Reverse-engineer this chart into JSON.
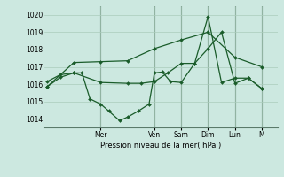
{
  "background_color": "#cce8e0",
  "grid_color": "#aaccbb",
  "line_color": "#1a5c2a",
  "marker_color": "#1a5c2a",
  "xlabel": "Pression niveau de la mer( hPa )",
  "ylim": [
    1013.5,
    1020.5
  ],
  "yticks": [
    1014,
    1015,
    1016,
    1017,
    1018,
    1019,
    1020
  ],
  "day_labels": [
    "Mer",
    "Ven",
    "Sam",
    "Dim",
    "Lun",
    "M"
  ],
  "day_positions": [
    2,
    4,
    5,
    6,
    7,
    8
  ],
  "xlim": [
    -0.1,
    8.6
  ],
  "series": {
    "line1_smooth": {
      "x": [
        0,
        1.0,
        2.0,
        3.0,
        4.0,
        5.0,
        6.0,
        7.0,
        8.0
      ],
      "y": [
        1015.85,
        1017.25,
        1017.3,
        1017.35,
        1018.05,
        1018.55,
        1019.0,
        1017.55,
        1017.0
      ]
    },
    "line2_jagged": {
      "x": [
        0,
        0.5,
        1.0,
        1.3,
        1.6,
        2.0,
        2.3,
        2.7,
        3.0,
        3.4,
        3.8,
        4.0,
        4.3,
        4.6,
        5.0,
        5.5,
        6.0,
        6.5,
        7.0,
        7.5,
        8.0
      ],
      "y": [
        1015.85,
        1016.4,
        1016.65,
        1016.65,
        1015.15,
        1014.85,
        1014.45,
        1013.9,
        1014.1,
        1014.45,
        1014.85,
        1016.65,
        1016.7,
        1016.15,
        1016.1,
        1017.2,
        1019.9,
        1016.1,
        1016.35,
        1016.35,
        1015.75
      ]
    },
    "line3_mid": {
      "x": [
        0,
        0.5,
        1.0,
        2.0,
        3.0,
        3.5,
        4.0,
        4.5,
        5.0,
        5.5,
        6.0,
        6.5,
        7.0,
        7.5,
        8.0
      ],
      "y": [
        1016.15,
        1016.55,
        1016.65,
        1016.1,
        1016.05,
        1016.05,
        1016.15,
        1016.65,
        1017.2,
        1017.2,
        1018.05,
        1019.0,
        1016.05,
        1016.35,
        1015.75
      ]
    }
  }
}
